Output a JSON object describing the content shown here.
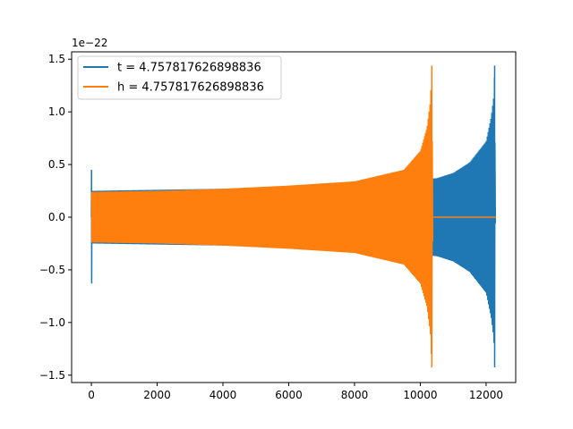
{
  "chart_data": {
    "type": "line",
    "title": "",
    "xlabel": "",
    "ylabel": "",
    "y_offset_label": "1e−22",
    "xlim": [
      -600,
      12900
    ],
    "ylim": [
      -1.57,
      1.57
    ],
    "xticks": [
      0,
      2000,
      4000,
      6000,
      8000,
      10000,
      12000
    ],
    "xtick_labels": [
      "0",
      "2000",
      "4000",
      "6000",
      "8000",
      "10000",
      "12000"
    ],
    "yticks": [
      1.5,
      1.0,
      0.5,
      0.0,
      -0.5,
      -1.0,
      -1.5
    ],
    "ytick_labels": [
      "1.5",
      "1.0",
      "0.5",
      "0.0",
      "−0.5",
      "−1.0",
      "−1.5"
    ],
    "grid": false,
    "legend_position": "upper-left",
    "series": [
      {
        "name": "t = 4.757817626898836",
        "color": "#1f77b4",
        "kind": "oscillating-chirp",
        "x_start": 0,
        "x_end": 12290,
        "x_merger": 12290,
        "x_peak": 12260,
        "envelope": [
          [
            10,
            0.25
          ],
          [
            2000,
            0.26
          ],
          [
            4000,
            0.27
          ],
          [
            6000,
            0.29
          ],
          [
            8000,
            0.32
          ],
          [
            10000,
            0.36
          ],
          [
            10500,
            0.37
          ],
          [
            11000,
            0.42
          ],
          [
            11500,
            0.52
          ],
          [
            12000,
            0.72
          ],
          [
            12150,
            0.95
          ],
          [
            12230,
            1.15
          ],
          [
            12260,
            1.44
          ],
          [
            12290,
            0.0
          ]
        ],
        "startup_spike": [
          [
            0,
            0.0
          ],
          [
            5,
            0.45
          ],
          [
            10,
            -0.63
          ],
          [
            15,
            0.0
          ]
        ],
        "after_merger_value": 0.0
      },
      {
        "name": "h = 4.757817626898836",
        "color": "#ff7f0e",
        "kind": "oscillating-chirp",
        "x_start": 0,
        "x_end": 12300,
        "x_merger": 10390,
        "x_peak": 10350,
        "envelope": [
          [
            0,
            0.24
          ],
          [
            2000,
            0.25
          ],
          [
            4000,
            0.27
          ],
          [
            6000,
            0.3
          ],
          [
            8000,
            0.34
          ],
          [
            9500,
            0.45
          ],
          [
            10000,
            0.63
          ],
          [
            10200,
            0.85
          ],
          [
            10300,
            1.1
          ],
          [
            10350,
            1.44
          ],
          [
            10390,
            0.0
          ]
        ],
        "after_merger_value": 0.0
      }
    ]
  }
}
